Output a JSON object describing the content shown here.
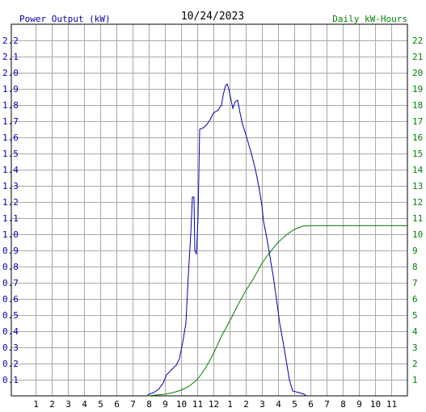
{
  "header": {
    "left_label": "Power Output (kW)",
    "date": "10/24/2023",
    "right_label": "Daily kW-Hours"
  },
  "colors": {
    "power": "#0000b0",
    "energy": "#008000",
    "grid": "#a9a9a9",
    "axis": "#000000",
    "left_text": "#0000b0",
    "right_text": "#008000"
  },
  "chart_data": {
    "type": "line",
    "x_ticks": [
      "1",
      "2",
      "3",
      "4",
      "5",
      "6",
      "7",
      "8",
      "9",
      "10",
      "11",
      "12",
      "1",
      "2",
      "3",
      "4",
      "5",
      "6",
      "7",
      "8",
      "9",
      "10",
      "11"
    ],
    "y_left": {
      "label": "Power Output (kW)",
      "range": [
        0,
        2.3
      ],
      "ticks": [
        "0.1",
        "0.2",
        "0.3",
        "0.4",
        "0.5",
        "0.6",
        "0.7",
        "0.8",
        "0.9",
        "1.0",
        "1.1",
        "1.2",
        "1.3",
        "1.4",
        "1.5",
        "1.6",
        "1.7",
        "1.8",
        "1.9",
        "2.0",
        "2.1",
        "2.2"
      ]
    },
    "y_right": {
      "label": "Daily kW-Hours",
      "range": [
        0,
        23
      ],
      "ticks": [
        "1",
        "2",
        "3",
        "4",
        "5",
        "6",
        "7",
        "8",
        "9",
        "10",
        "11",
        "12",
        "13",
        "14",
        "15",
        "16",
        "17",
        "18",
        "19",
        "20",
        "21",
        "22"
      ]
    },
    "grid": true,
    "series": [
      {
        "name": "Power Output (kW)",
        "axis": "left",
        "points": [
          [
            7.9,
            0.0
          ],
          [
            8.0,
            0.01
          ],
          [
            8.3,
            0.02
          ],
          [
            8.6,
            0.04
          ],
          [
            8.9,
            0.08
          ],
          [
            9.1,
            0.13
          ],
          [
            9.3,
            0.15
          ],
          [
            9.5,
            0.17
          ],
          [
            9.7,
            0.19
          ],
          [
            9.9,
            0.23
          ],
          [
            10.1,
            0.33
          ],
          [
            10.3,
            0.45
          ],
          [
            10.45,
            0.75
          ],
          [
            10.6,
            1.0
          ],
          [
            10.7,
            1.23
          ],
          [
            10.8,
            1.23
          ],
          [
            10.85,
            0.9
          ],
          [
            10.95,
            0.88
          ],
          [
            11.05,
            1.1
          ],
          [
            11.15,
            1.65
          ],
          [
            11.4,
            1.66
          ],
          [
            11.6,
            1.68
          ],
          [
            11.8,
            1.71
          ],
          [
            12.0,
            1.75
          ],
          [
            12.3,
            1.77
          ],
          [
            12.5,
            1.8
          ],
          [
            12.6,
            1.86
          ],
          [
            12.75,
            1.92
          ],
          [
            12.85,
            1.93
          ],
          [
            12.95,
            1.9
          ],
          [
            13.05,
            1.85
          ],
          [
            13.2,
            1.78
          ],
          [
            13.35,
            1.82
          ],
          [
            13.5,
            1.83
          ],
          [
            13.65,
            1.75
          ],
          [
            13.8,
            1.68
          ],
          [
            14.0,
            1.62
          ],
          [
            14.2,
            1.55
          ],
          [
            14.4,
            1.48
          ],
          [
            14.6,
            1.4
          ],
          [
            14.8,
            1.3
          ],
          [
            15.0,
            1.18
          ],
          [
            15.1,
            1.08
          ],
          [
            15.3,
            0.98
          ],
          [
            15.5,
            0.86
          ],
          [
            15.7,
            0.74
          ],
          [
            15.9,
            0.6
          ],
          [
            16.1,
            0.45
          ],
          [
            16.3,
            0.34
          ],
          [
            16.5,
            0.22
          ],
          [
            16.7,
            0.1
          ],
          [
            16.9,
            0.03
          ],
          [
            17.3,
            0.02
          ],
          [
            17.6,
            0.01
          ],
          [
            17.75,
            0.0
          ]
        ]
      },
      {
        "name": "Daily kW-Hours",
        "axis": "right",
        "points": [
          [
            7.9,
            0
          ],
          [
            9.0,
            0.1
          ],
          [
            9.5,
            0.2
          ],
          [
            10.0,
            0.35
          ],
          [
            10.5,
            0.6
          ],
          [
            11.0,
            1.0
          ],
          [
            11.5,
            1.7
          ],
          [
            12.0,
            2.6
          ],
          [
            12.5,
            3.7
          ],
          [
            13.0,
            4.6
          ],
          [
            13.5,
            5.6
          ],
          [
            14.0,
            6.5
          ],
          [
            14.5,
            7.3
          ],
          [
            15.0,
            8.2
          ],
          [
            15.5,
            8.9
          ],
          [
            16.0,
            9.5
          ],
          [
            16.5,
            9.95
          ],
          [
            17.0,
            10.3
          ],
          [
            17.5,
            10.5
          ],
          [
            18.0,
            10.53
          ],
          [
            24.9,
            10.53
          ]
        ]
      }
    ]
  }
}
